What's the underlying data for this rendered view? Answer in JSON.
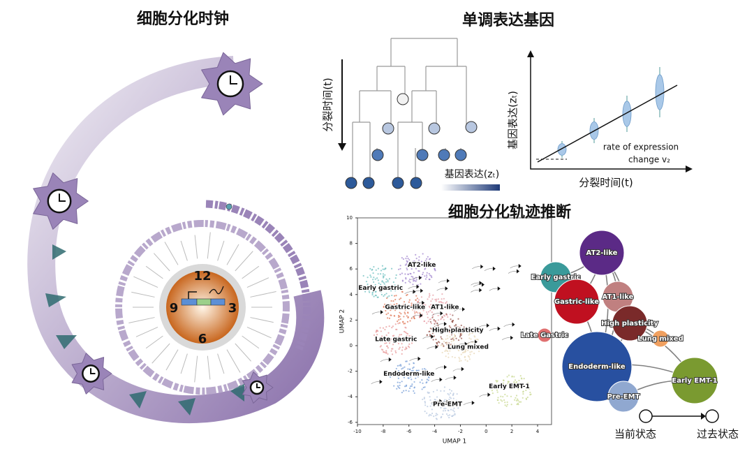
{
  "clock_panel": {
    "title": "细胞分化时钟",
    "clock_numbers": [
      "12",
      "3",
      "6",
      "9"
    ]
  },
  "gene_panel": {
    "title": "单调表达基因",
    "tree_axis_label": "分裂时间(t)",
    "colorbar_label": "基因表达(zₜ)",
    "plot_y_label": "基因表达(zₜ)",
    "plot_x_label": "分裂时间(t)",
    "annotation": [
      "rate of expression",
      "change v₂"
    ]
  },
  "trajectory_panel": {
    "title": "细胞分化轨迹推断",
    "umap": {
      "x_label": "UMAP 1",
      "y_label": "UMAP 2",
      "xticks": [
        -10,
        -8,
        -6,
        -4,
        -2,
        0,
        2,
        4
      ],
      "yticks": [
        -6,
        -4,
        -2,
        0,
        2,
        4,
        6,
        8,
        10
      ],
      "clusters": [
        "AT2-like",
        "Early gastric",
        "Gastric-like",
        "AT1-like",
        "High plasticity",
        "Late gastric",
        "Lung mixed",
        "Endoderm-like",
        "Early EMT-1",
        "Pre-EMT"
      ]
    },
    "graph": {
      "nodes": [
        "AT2-like",
        "Early gastric",
        "Gastric-like",
        "AT1-like",
        "High plasticity",
        "Late Gastric",
        "Lung mixed",
        "Endoderm-like",
        "Early EMT-1",
        "Pre-EMT"
      ],
      "legend": [
        "当前状态",
        "过去状态"
      ]
    }
  }
}
